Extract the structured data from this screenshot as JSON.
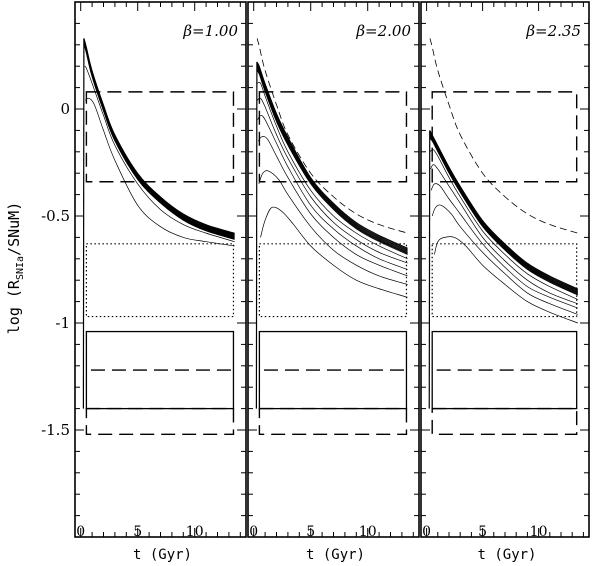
{
  "chart_data": {
    "type": "line",
    "ylabel": "log (R",
    "ylabel_sub": "SNIa",
    "ylabel_tail": "/SNuM)",
    "ylim": [
      -2.0,
      0.5
    ],
    "xlim": [
      -0.5,
      14.5
    ],
    "yticks": [
      {
        "v": 0,
        "label": "0"
      },
      {
        "v": -0.5,
        "label": "-0.5"
      },
      {
        "v": -1,
        "label": "-1"
      },
      {
        "v": -1.5,
        "label": "-1.5"
      }
    ],
    "xticks": [
      {
        "v": 0,
        "label": "0"
      },
      {
        "v": 5,
        "label": "5"
      },
      {
        "v": 10,
        "label": "10"
      }
    ],
    "panels": [
      {
        "beta_label": "β=1.00",
        "xlabel": "t (Gyr)",
        "envelope_top": {
          "x": [
            0.3,
            0.5,
            1,
            2,
            3,
            5,
            7,
            9,
            11,
            13.5
          ],
          "y": [
            0.33,
            0.29,
            0.18,
            0.02,
            -0.12,
            -0.3,
            -0.41,
            -0.49,
            -0.54,
            -0.58
          ]
        },
        "envelope_bottom": {
          "x": [
            0.3,
            0.5,
            1,
            2,
            3,
            5,
            7,
            9,
            11,
            13.5
          ],
          "y": [
            0.3,
            0.26,
            0.15,
            -0.01,
            -0.15,
            -0.33,
            -0.44,
            -0.52,
            -0.57,
            -0.61
          ]
        },
        "envelope_count": 18,
        "extra_curves": [
          {
            "x": [
              0.35,
              0.5,
              1,
              2,
              3,
              5,
              7,
              9,
              11,
              13.5
            ],
            "y": [
              0.2,
              0.19,
              0.12,
              -0.03,
              -0.17,
              -0.35,
              -0.47,
              -0.54,
              -0.58,
              -0.62
            ]
          },
          {
            "x": [
              0.4,
              0.7,
              1.2,
              2,
              3,
              5,
              7,
              9,
              11,
              13.5
            ],
            "y": [
              0.04,
              0.05,
              0.02,
              -0.1,
              -0.24,
              -0.45,
              -0.55,
              -0.6,
              -0.62,
              -0.64
            ]
          }
        ],
        "reference_dashed": null,
        "spike_min": -1.4
      },
      {
        "beta_label": "β=2.00",
        "xlabel": "t (Gyr)",
        "envelope_top": {
          "x": [
            0.3,
            0.5,
            1,
            2,
            3,
            5,
            7,
            9,
            11,
            13.5
          ],
          "y": [
            0.22,
            0.2,
            0.12,
            -0.02,
            -0.13,
            -0.32,
            -0.44,
            -0.53,
            -0.59,
            -0.65
          ]
        },
        "envelope_bottom": {
          "x": [
            0.3,
            0.5,
            1,
            2,
            3,
            5,
            7,
            9,
            11,
            13.5
          ],
          "y": [
            0.18,
            0.16,
            0.08,
            -0.06,
            -0.17,
            -0.35,
            -0.47,
            -0.56,
            -0.62,
            -0.68
          ]
        },
        "envelope_count": 10,
        "extra_curves": [
          {
            "x": [
              0.3,
              0.6,
              1,
              2,
              3,
              5,
              7,
              9,
              11,
              13.5
            ],
            "y": [
              0.12,
              0.12,
              0.06,
              -0.08,
              -0.2,
              -0.38,
              -0.5,
              -0.58,
              -0.64,
              -0.7
            ]
          },
          {
            "x": [
              0.3,
              0.6,
              1,
              2,
              3,
              5,
              7,
              9,
              11,
              13.5
            ],
            "y": [
              0.04,
              0.05,
              0.01,
              -0.12,
              -0.23,
              -0.41,
              -0.53,
              -0.61,
              -0.67,
              -0.72
            ]
          },
          {
            "x": [
              0.35,
              0.6,
              1,
              2,
              3,
              5,
              7,
              9,
              11,
              13.5
            ],
            "y": [
              -0.05,
              -0.03,
              -0.05,
              -0.16,
              -0.27,
              -0.45,
              -0.56,
              -0.64,
              -0.7,
              -0.75
            ]
          },
          {
            "x": [
              0.4,
              0.7,
              1.2,
              2,
              3,
              5,
              7,
              9,
              11,
              13.5
            ],
            "y": [
              -0.15,
              -0.13,
              -0.14,
              -0.22,
              -0.32,
              -0.49,
              -0.6,
              -0.68,
              -0.73,
              -0.78
            ]
          },
          {
            "x": [
              0.45,
              0.8,
              1.3,
              2.2,
              3,
              5,
              7,
              9,
              11,
              13.5
            ],
            "y": [
              -0.35,
              -0.3,
              -0.29,
              -0.33,
              -0.4,
              -0.55,
              -0.66,
              -0.73,
              -0.78,
              -0.82
            ]
          },
          {
            "x": [
              0.6,
              1.0,
              1.6,
              2.5,
              3.5,
              5,
              7,
              9,
              11,
              13.5
            ],
            "y": [
              -0.6,
              -0.52,
              -0.46,
              -0.48,
              -0.54,
              -0.64,
              -0.73,
              -0.8,
              -0.84,
              -0.88
            ]
          }
        ],
        "reference_dashed": {
          "x": [
            0.3,
            0.5,
            1,
            2,
            3,
            5,
            7,
            9,
            11,
            13.5
          ],
          "y": [
            0.33,
            0.29,
            0.18,
            0.02,
            -0.12,
            -0.3,
            -0.41,
            -0.49,
            -0.54,
            -0.58
          ]
        },
        "spike_min": -1.4
      },
      {
        "beta_label": "β=2.35",
        "xlabel": "t (Gyr)",
        "envelope_top": {
          "x": [
            0.3,
            0.5,
            1,
            2,
            3,
            5,
            7,
            9,
            11,
            13.5
          ],
          "y": [
            -0.1,
            -0.12,
            -0.17,
            -0.27,
            -0.36,
            -0.52,
            -0.63,
            -0.72,
            -0.78,
            -0.84
          ]
        },
        "envelope_bottom": {
          "x": [
            0.3,
            0.5,
            1,
            2,
            3,
            5,
            7,
            9,
            11,
            13.5
          ],
          "y": [
            -0.14,
            -0.15,
            -0.2,
            -0.3,
            -0.39,
            -0.55,
            -0.66,
            -0.75,
            -0.81,
            -0.87
          ]
        },
        "envelope_count": 12,
        "extra_curves": [
          {
            "x": [
              0.3,
              0.6,
              1,
              2,
              3,
              5,
              7,
              9,
              11,
              13.5
            ],
            "y": [
              -0.2,
              -0.19,
              -0.22,
              -0.32,
              -0.41,
              -0.57,
              -0.68,
              -0.77,
              -0.83,
              -0.89
            ]
          },
          {
            "x": [
              0.35,
              0.6,
              1,
              2,
              3,
              5,
              7,
              9,
              11,
              13.5
            ],
            "y": [
              -0.28,
              -0.26,
              -0.28,
              -0.36,
              -0.44,
              -0.6,
              -0.71,
              -0.8,
              -0.86,
              -0.91
            ]
          },
          {
            "x": [
              0.4,
              0.7,
              1.2,
              2,
              3,
              5,
              7,
              9,
              11,
              13.5
            ],
            "y": [
              -0.38,
              -0.35,
              -0.36,
              -0.42,
              -0.49,
              -0.63,
              -0.74,
              -0.83,
              -0.88,
              -0.93
            ]
          },
          {
            "x": [
              0.5,
              0.8,
              1.3,
              2.2,
              3,
              5,
              7,
              9,
              11,
              13.5
            ],
            "y": [
              -0.5,
              -0.46,
              -0.45,
              -0.49,
              -0.55,
              -0.67,
              -0.77,
              -0.86,
              -0.91,
              -0.96
            ]
          },
          {
            "x": [
              0.7,
              1.0,
              1.6,
              2.5,
              3.5,
              5,
              7,
              9,
              11,
              13.5
            ],
            "y": [
              -0.68,
              -0.62,
              -0.6,
              -0.6,
              -0.64,
              -0.73,
              -0.82,
              -0.9,
              -0.95,
              -1.0
            ]
          }
        ],
        "reference_dashed": {
          "x": [
            0.3,
            0.5,
            1,
            2,
            3,
            5,
            7,
            9,
            11,
            13.5
          ],
          "y": [
            0.33,
            0.29,
            0.18,
            0.02,
            -0.12,
            -0.3,
            -0.41,
            -0.49,
            -0.54,
            -0.58
          ]
        },
        "spike_min": -1.4
      }
    ],
    "observational_boxes": {
      "dashed_box": {
        "x": [
          0.5,
          13.4
        ],
        "y": [
          -0.34,
          0.08
        ]
      },
      "dotted_box": {
        "x": [
          0.5,
          13.4
        ],
        "y": [
          -0.97,
          -0.63
        ]
      },
      "solid_box": {
        "x": [
          0.5,
          13.4
        ],
        "y": [
          -1.4,
          -1.04
        ]
      },
      "inner_dashed_line": {
        "x": [
          0.9,
          13.4
        ],
        "y": -1.22
      },
      "lower_dashed_box": {
        "x": [
          0.5,
          13.4
        ],
        "y": [
          -1.52,
          -1.4
        ]
      }
    }
  }
}
